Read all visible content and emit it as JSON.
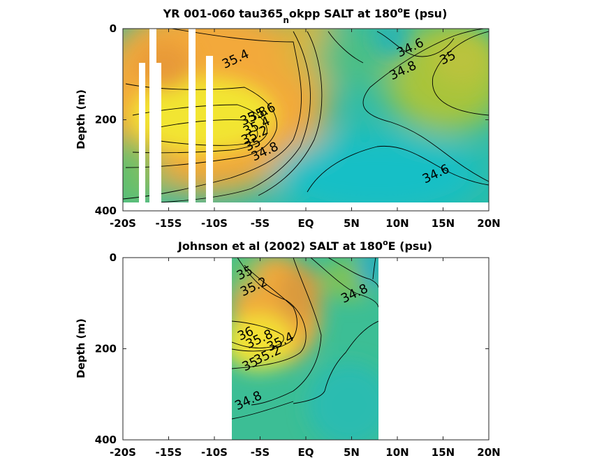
{
  "chart_data": [
    {
      "type": "heatmap",
      "title_parts": [
        "YR 001-060 tau365",
        "n",
        "okpp SALT at 180",
        "o",
        "E (psu)"
      ],
      "ylabel": "Depth (m)",
      "x_ticks": [
        "-20S",
        "-15S",
        "-10S",
        "-5S",
        "EQ",
        "5N",
        "10N",
        "15N",
        "20N"
      ],
      "y_ticks": [
        "0",
        "200",
        "400"
      ],
      "xlim": [
        -20,
        20
      ],
      "ylim": [
        0,
        400
      ],
      "data_extent": {
        "lat": [
          -20,
          20
        ],
        "depth": [
          0,
          380
        ]
      },
      "missing_columns_lat": [
        [
          -18.3,
          -17.6
        ],
        [
          -16.1,
          -15.4
        ],
        [
          -11.9,
          -11.2
        ],
        [
          -10.3,
          -9.6
        ]
      ],
      "contour_labels": [
        {
          "text": "35.4",
          "lat": -7.5,
          "depth": 75
        },
        {
          "text": "35.8",
          "lat": -5.5,
          "depth": 200
        },
        {
          "text": "35.6",
          "lat": -4.6,
          "depth": 192
        },
        {
          "text": "35.4",
          "lat": -5.2,
          "depth": 222
        },
        {
          "text": "35.2",
          "lat": -5.4,
          "depth": 242
        },
        {
          "text": "35",
          "lat": -5.6,
          "depth": 262
        },
        {
          "text": "34.8",
          "lat": -4.3,
          "depth": 278
        },
        {
          "text": "34.6",
          "lat": 11.6,
          "depth": 50
        },
        {
          "text": "34.8",
          "lat": 10.8,
          "depth": 100
        },
        {
          "text": "35",
          "lat": 15.7,
          "depth": 72
        },
        {
          "text": "34.6",
          "lat": 14.4,
          "depth": 327
        }
      ]
    },
    {
      "type": "heatmap",
      "title_parts": [
        "Johnson et al (2002) SALT at 180",
        "o",
        "E (psu)"
      ],
      "ylabel": "Depth (m)",
      "x_ticks": [
        "-20S",
        "-15S",
        "-10S",
        "-5S",
        "EQ",
        "5N",
        "10N",
        "15N",
        "20N"
      ],
      "y_ticks": [
        "0",
        "200",
        "400"
      ],
      "xlim": [
        -20,
        20
      ],
      "ylim": [
        0,
        400
      ],
      "data_extent": {
        "lat": [
          -8,
          8
        ],
        "depth": [
          0,
          400
        ]
      },
      "contour_labels": [
        {
          "text": "35",
          "lat": -6.5,
          "depth": 42
        },
        {
          "text": "35.2",
          "lat": -5.5,
          "depth": 72
        },
        {
          "text": "34.8",
          "lat": 5.5,
          "depth": 87
        },
        {
          "text": "36",
          "lat": -6.4,
          "depth": 175
        },
        {
          "text": "35.8",
          "lat": -4.9,
          "depth": 187
        },
        {
          "text": "35.4",
          "lat": -2.6,
          "depth": 193
        },
        {
          "text": "35.2",
          "lat": -4.0,
          "depth": 222
        },
        {
          "text": "35",
          "lat": -5.9,
          "depth": 242
        },
        {
          "text": "34.8",
          "lat": -6.1,
          "depth": 322
        }
      ]
    }
  ]
}
